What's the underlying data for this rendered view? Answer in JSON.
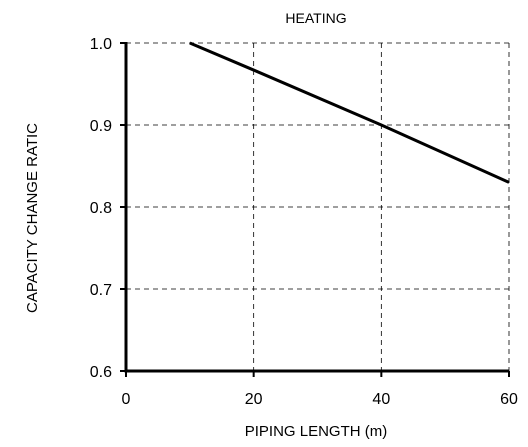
{
  "chart_data": {
    "type": "line",
    "title": "HEATING",
    "xlabel": "PIPING LENGTH  (m)",
    "ylabel": "CAPACITY CHANGE RATIC",
    "xlim": [
      0,
      60
    ],
    "ylim": [
      0.6,
      1.0
    ],
    "xticks": [
      "0",
      "20",
      "40",
      "60"
    ],
    "yticks": [
      "0.6",
      "0.7",
      "0.8",
      "0.9",
      "1.0"
    ],
    "grid": true,
    "grid_style": "dashed",
    "series": [
      {
        "x": [
          10,
          20,
          40,
          60
        ],
        "y": [
          1.0,
          0.967,
          0.9,
          0.83
        ],
        "color": "#000000"
      }
    ]
  }
}
